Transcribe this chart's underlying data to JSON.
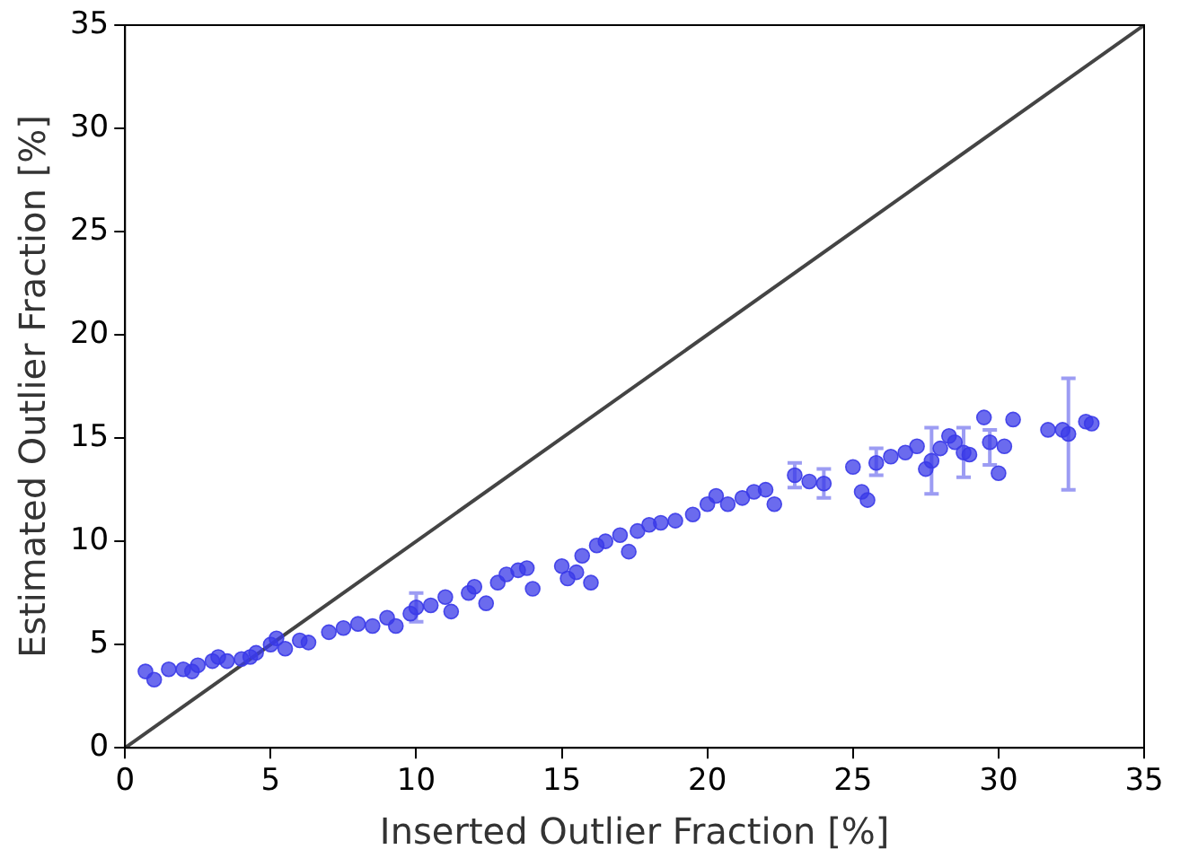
{
  "chart_data": {
    "type": "scatter",
    "xlabel": "Inserted Outlier Fraction [%]",
    "ylabel": "Estimated Outlier Fraction [%]",
    "xlim": [
      0,
      35
    ],
    "ylim": [
      0,
      35
    ],
    "xticks": [
      0,
      5,
      10,
      15,
      20,
      25,
      30,
      35
    ],
    "yticks": [
      0,
      5,
      10,
      15,
      20,
      25,
      30,
      35
    ],
    "grid": false,
    "series": [
      {
        "marker": "circle",
        "color": "#3a3ae8",
        "x": [
          0.7,
          1.0,
          1.5,
          2.0,
          2.3,
          2.5,
          3.0,
          3.2,
          3.5,
          4.0,
          4.3,
          4.5,
          5.0,
          5.2,
          5.5,
          6.0,
          6.3,
          7.0,
          7.5,
          8.0,
          8.5,
          9.0,
          9.3,
          9.8,
          10.0,
          10.5,
          11.0,
          11.2,
          11.8,
          12.0,
          12.4,
          12.8,
          13.1,
          13.5,
          13.8,
          14.0,
          15.0,
          15.2,
          15.5,
          15.7,
          16.0,
          16.2,
          16.5,
          17.0,
          17.3,
          17.6,
          18.0,
          18.4,
          18.9,
          19.5,
          20.0,
          20.3,
          20.7,
          21.2,
          21.6,
          22.0,
          22.3,
          23.0,
          23.5,
          24.0,
          25.0,
          25.3,
          25.5,
          25.8,
          26.3,
          26.8,
          27.2,
          27.5,
          27.7,
          28.0,
          28.3,
          28.5,
          28.8,
          29.0,
          29.5,
          29.7,
          30.0,
          30.2,
          30.5,
          31.7,
          32.2,
          32.4,
          33.0,
          33.2
        ],
        "values": [
          3.7,
          3.3,
          3.8,
          3.8,
          3.7,
          4.0,
          4.2,
          4.4,
          4.2,
          4.3,
          4.4,
          4.6,
          5.0,
          5.3,
          4.8,
          5.2,
          5.1,
          5.6,
          5.8,
          6.0,
          5.9,
          6.3,
          5.9,
          6.5,
          6.8,
          6.9,
          7.3,
          6.6,
          7.5,
          7.8,
          7.0,
          8.0,
          8.4,
          8.6,
          8.7,
          7.7,
          8.8,
          8.2,
          8.5,
          9.3,
          8.0,
          9.8,
          10.0,
          10.3,
          9.5,
          10.5,
          10.8,
          10.9,
          11.0,
          11.3,
          11.8,
          12.2,
          11.8,
          12.1,
          12.4,
          12.5,
          11.8,
          13.2,
          12.9,
          12.8,
          13.6,
          12.4,
          12.0,
          13.8,
          14.1,
          14.3,
          14.6,
          13.5,
          13.9,
          14.5,
          15.1,
          14.8,
          14.3,
          14.2,
          16.0,
          14.8,
          13.3,
          14.6,
          15.9,
          15.4,
          15.4,
          15.2,
          15.8,
          15.7
        ],
        "errors": [
          null,
          null,
          null,
          null,
          null,
          null,
          null,
          null,
          null,
          null,
          null,
          null,
          null,
          null,
          null,
          null,
          null,
          null,
          null,
          null,
          null,
          null,
          null,
          null,
          [
            6.1,
            7.5
          ],
          null,
          null,
          null,
          null,
          null,
          null,
          null,
          null,
          null,
          null,
          null,
          null,
          null,
          null,
          null,
          null,
          null,
          null,
          null,
          null,
          null,
          null,
          null,
          null,
          null,
          null,
          null,
          null,
          null,
          null,
          null,
          null,
          [
            12.6,
            13.8
          ],
          null,
          [
            12.1,
            13.5
          ],
          null,
          null,
          null,
          [
            13.2,
            14.5
          ],
          null,
          null,
          null,
          null,
          [
            12.3,
            15.5
          ],
          null,
          null,
          null,
          [
            13.1,
            15.5
          ],
          null,
          null,
          [
            13.7,
            15.4
          ],
          null,
          null,
          null,
          null,
          null,
          [
            12.5,
            17.9
          ],
          null,
          null
        ]
      },
      {
        "type": "line",
        "color": "#444444",
        "line_style": "solid",
        "x": [
          0,
          35
        ],
        "values": [
          0,
          35
        ]
      }
    ]
  }
}
